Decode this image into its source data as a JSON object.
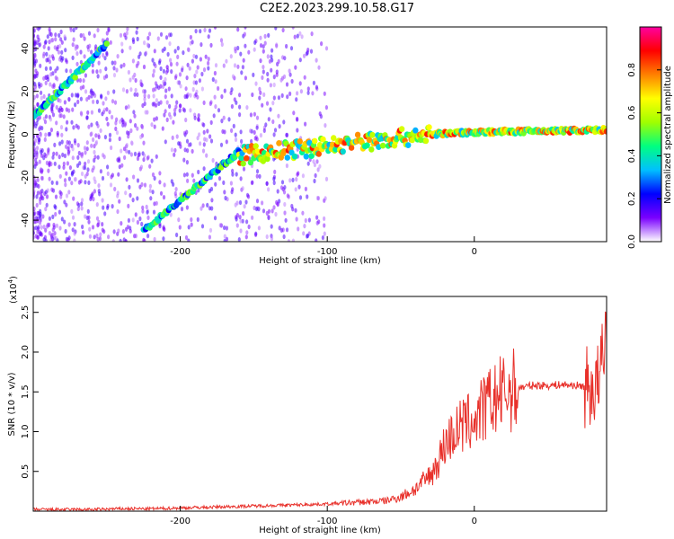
{
  "title": "C2E2.2023.299.10.58.G17",
  "colors": {
    "accent": "#e8302a",
    "axes": "#000000"
  },
  "chart_data": [
    {
      "type": "heatmap",
      "title": "C2E2.2023.299.10.58.G17",
      "xlabel": "Height of straight line (km)",
      "ylabel": "Frequency (Hz)",
      "xlim": [
        -300,
        90
      ],
      "ylim": [
        -50,
        50
      ],
      "xticks": [
        -200,
        -100,
        0
      ],
      "yticks": [
        -40,
        -20,
        0,
        20,
        40
      ],
      "colorbar": {
        "label": "Normalized spectral amplitude",
        "range": [
          0,
          1
        ],
        "ticks": [
          "0.0",
          "0.2",
          "0.4",
          "0.6",
          "0.8"
        ],
        "colormap": [
          "#ffffff",
          "#7a00ff",
          "#0000ff",
          "#00c0ff",
          "#00ff80",
          "#a0ff00",
          "#ffff00",
          "#ff8000",
          "#ff0000",
          "#ff00a0"
        ]
      },
      "features": [
        {
          "name": "track_upper",
          "x": [
            -300,
            -250
          ],
          "y": [
            8,
            42
          ],
          "amplitude": 0.5
        },
        {
          "name": "track_lower",
          "x": [
            -225,
            -160
          ],
          "y": [
            -45,
            -8
          ],
          "amplitude": 0.5
        },
        {
          "name": "track_center",
          "x": [
            -160,
            -30,
            0,
            90
          ],
          "y": [
            -10,
            0,
            1,
            2
          ],
          "amplitude": 0.8
        }
      ]
    },
    {
      "type": "line",
      "xlabel": "Height of straight line (km)",
      "ylabel": "SNR (10 * v/v)",
      "yscale_label": "(x10",
      "yscale_exponent": "4",
      "xlim": [
        -300,
        90
      ],
      "ylim": [
        0,
        2.7
      ],
      "xticks": [
        -200,
        -100,
        0
      ],
      "yticks": [
        "0.5",
        "1.0",
        "1.5",
        "2.0",
        "2.5"
      ],
      "color": "#e8302a",
      "series": [
        {
          "x": [
            -300,
            -280,
            -260,
            -240,
            -220,
            -200,
            -180,
            -160,
            -140,
            -120,
            -100,
            -80,
            -60,
            -50,
            -40,
            -30,
            -25,
            -20,
            -15,
            -10,
            -5,
            0,
            5,
            10,
            20,
            30,
            40,
            50,
            60,
            70,
            80,
            85,
            88,
            90
          ],
          "y": [
            0.02,
            0.02,
            0.02,
            0.03,
            0.03,
            0.04,
            0.05,
            0.06,
            0.07,
            0.08,
            0.09,
            0.11,
            0.13,
            0.18,
            0.28,
            0.45,
            0.6,
            0.85,
            0.95,
            1.05,
            1.1,
            1.15,
            1.25,
            1.35,
            1.48,
            1.55,
            1.58,
            1.58,
            1.59,
            1.58,
            1.55,
            1.6,
            1.9,
            2.3
          ]
        }
      ]
    }
  ]
}
